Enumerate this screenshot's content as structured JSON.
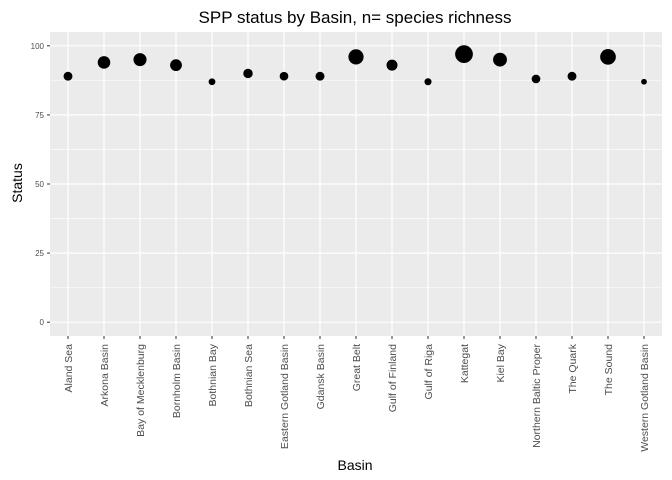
{
  "chart_data": {
    "type": "scatter",
    "title": "SPP status by Basin, n= species richness",
    "xlabel": "Basin",
    "ylabel": "Status",
    "ylim": [
      -5,
      105
    ],
    "yticks": [
      0,
      25,
      50,
      75,
      100
    ],
    "grid": true,
    "legend": "none",
    "background_color": "#ebebeb",
    "grid_color": "#ffffff",
    "point_color": "#000000",
    "categories": [
      "Aland Sea",
      "Arkona Basin",
      "Bay of Mecklenburg",
      "Bornholm Basin",
      "Bothnian Bay",
      "Bothnian Sea",
      "Eastern Gotland Basin",
      "Gdansk Basin",
      "Great Belt",
      "Gulf of Finland",
      "Gulf of Riga",
      "Kattegat",
      "Kiel Bay",
      "Northern Baltic Proper",
      "The Quark",
      "The Sound",
      "Western Gotland Basin"
    ],
    "values": [
      89,
      94,
      95,
      93,
      87,
      90,
      89,
      89,
      96,
      93,
      87,
      97,
      95,
      88,
      89,
      96,
      87
    ],
    "size_rank": [
      2.2,
      3.6,
      3.8,
      3.3,
      1.4,
      2.4,
      2.1,
      2.2,
      4.6,
      3.0,
      1.5,
      5.6,
      4.1,
      2.1,
      2.2,
      4.8,
      1.0
    ]
  }
}
